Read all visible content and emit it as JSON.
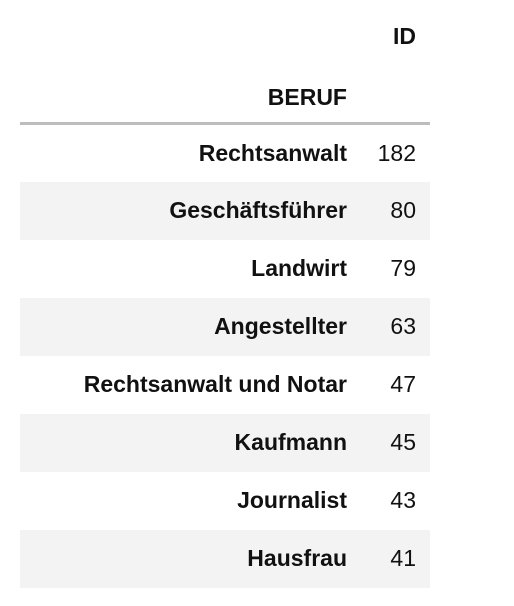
{
  "table": {
    "value_column_header": "ID",
    "index_name": "BERUF",
    "rows": [
      {
        "beruf": "Rechtsanwalt",
        "id": "182"
      },
      {
        "beruf": "Geschäftsführer",
        "id": "80"
      },
      {
        "beruf": "Landwirt",
        "id": "79"
      },
      {
        "beruf": "Angestellter",
        "id": "63"
      },
      {
        "beruf": "Rechtsanwalt und Notar",
        "id": "47"
      },
      {
        "beruf": "Kaufmann",
        "id": "45"
      },
      {
        "beruf": "Journalist",
        "id": "43"
      },
      {
        "beruf": "Hausfrau",
        "id": "41"
      }
    ]
  }
}
